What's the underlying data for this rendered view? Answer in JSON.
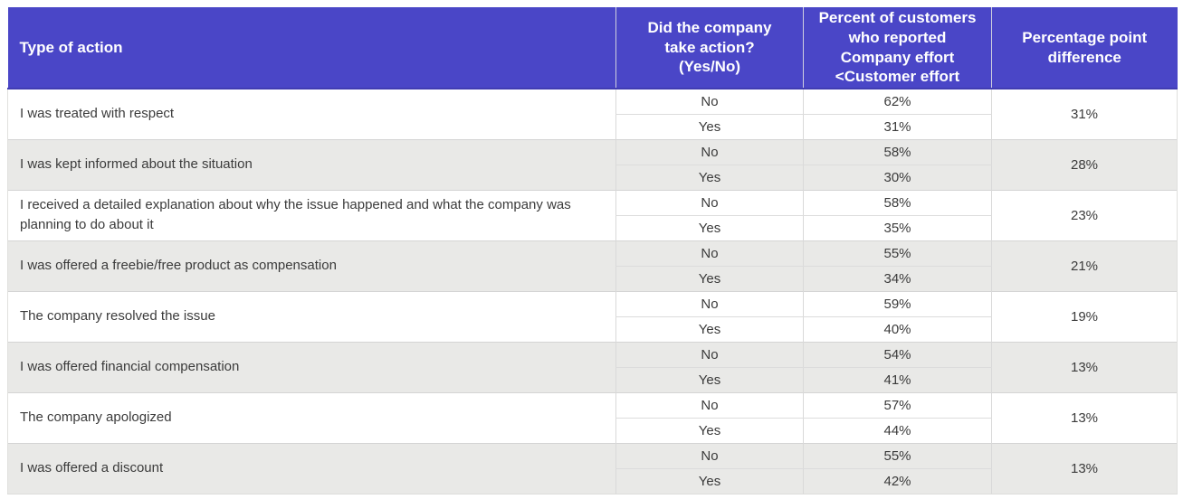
{
  "colors": {
    "header_background": "#4a46c7",
    "header_bottom_border": "#413db2",
    "header_text": "#ffffff",
    "row_alt_background": "#e9e9e7",
    "row_background": "#ffffff",
    "body_text": "#3b3b3b",
    "grid_border": "#d9d9d9"
  },
  "table": {
    "headers": [
      "Type of action",
      "Did the company\ntake action?\n(Yes/No)",
      "Percent of customers\nwho reported\nCompany effort\n<Customer effort",
      "Percentage point\ndifference"
    ],
    "answer_labels": [
      "No",
      "Yes"
    ],
    "rows": [
      {
        "action": "I was treated with respect",
        "no_percent": "62%",
        "yes_percent": "31%",
        "difference": "31%"
      },
      {
        "action": "I was kept informed about the situation",
        "no_percent": "58%",
        "yes_percent": "30%",
        "difference": "28%"
      },
      {
        "action": "I received a detailed explanation about why the issue happened and what the company was planning to do about it",
        "no_percent": "58%",
        "yes_percent": "35%",
        "difference": "23%"
      },
      {
        "action": "I was offered a freebie/free product as compensation",
        "no_percent": "55%",
        "yes_percent": "34%",
        "difference": "21%"
      },
      {
        "action": "The company resolved the issue",
        "no_percent": "59%",
        "yes_percent": "40%",
        "difference": "19%"
      },
      {
        "action": "I was offered financial compensation",
        "no_percent": "54%",
        "yes_percent": "41%",
        "difference": "13%"
      },
      {
        "action": "The company apologized",
        "no_percent": "57%",
        "yes_percent": "44%",
        "difference": "13%"
      },
      {
        "action": "I was offered a discount",
        "no_percent": "55%",
        "yes_percent": "42%",
        "difference": "13%"
      }
    ]
  },
  "chart_data": {
    "type": "table",
    "columns": [
      "Type of action",
      "Did the company take action? (Yes/No)",
      "Percent of customers who reported Company effort <Customer effort",
      "Percentage point difference"
    ],
    "groups": [
      {
        "action": "I was treated with respect",
        "no": 62,
        "yes": 31,
        "difference": 31
      },
      {
        "action": "I was kept informed about the situation",
        "no": 58,
        "yes": 30,
        "difference": 28
      },
      {
        "action": "I received a detailed explanation about why the issue happened and what the company was planning to do about it",
        "no": 58,
        "yes": 35,
        "difference": 23
      },
      {
        "action": "I was offered a freebie/free product as compensation",
        "no": 55,
        "yes": 34,
        "difference": 21
      },
      {
        "action": "The company resolved the issue",
        "no": 59,
        "yes": 40,
        "difference": 19
      },
      {
        "action": "I was offered financial compensation",
        "no": 54,
        "yes": 41,
        "difference": 13
      },
      {
        "action": "The company apologized",
        "no": 57,
        "yes": 44,
        "difference": 13
      },
      {
        "action": "I was offered a discount",
        "no": 55,
        "yes": 42,
        "difference": 13
      }
    ]
  }
}
